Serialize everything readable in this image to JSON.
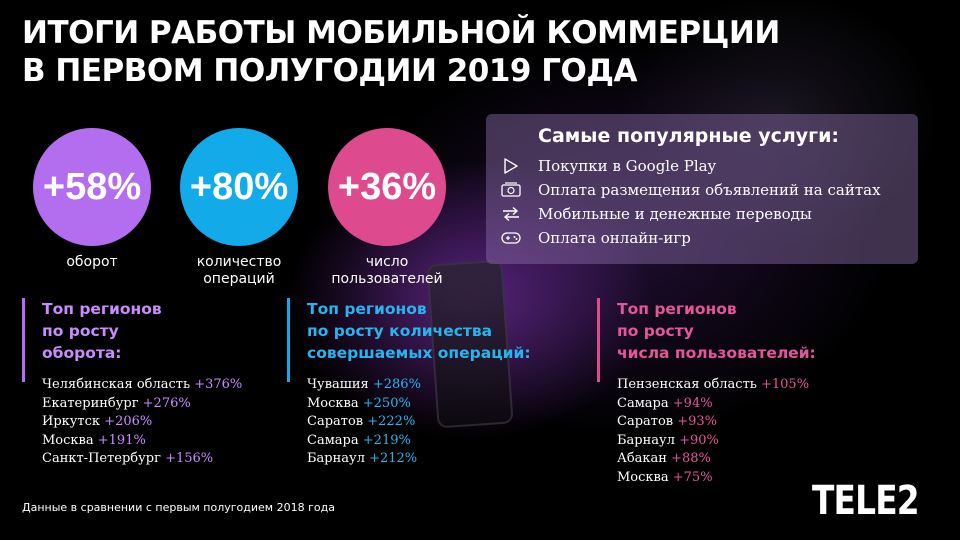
{
  "title": {
    "line1": "ИТОГИ РАБОТЫ МОБИЛЬНОЙ КОММЕРЦИИ",
    "line2": "В ПЕРВОМ ПОЛУГОДИИ 2019 ГОДА"
  },
  "stats": [
    {
      "value": "+58%",
      "label": "оборот",
      "color": "#b36ef0"
    },
    {
      "value": "+80%",
      "label_line1": "количество",
      "label_line2": "операций",
      "color": "#12aae8"
    },
    {
      "value": "+36%",
      "label_line1": "число",
      "label_line2": "пользователей",
      "color": "#de4a8e"
    }
  ],
  "services": {
    "heading": "Самые популярные услуги:",
    "items": [
      {
        "icon": "play-store-icon",
        "text": "Покупки в Google Play"
      },
      {
        "icon": "ad-placement-icon",
        "text": "Оплата размещения объявлений на сайтах"
      },
      {
        "icon": "transfer-arrows-icon",
        "text": "Мобильные и денежные переводы"
      },
      {
        "icon": "gamepad-icon",
        "text": "Оплата онлайн-игр"
      }
    ]
  },
  "regions": [
    {
      "head": [
        "Топ регионов",
        "по росту",
        "оборота:"
      ],
      "color": "#b36ef0",
      "items": [
        {
          "name": "Челябинская область",
          "value": "+376%"
        },
        {
          "name": "Екатеринбург",
          "value": "+276%"
        },
        {
          "name": "Иркутск",
          "value": "+206%"
        },
        {
          "name": "Москва",
          "value": "+191%"
        },
        {
          "name": "Санкт-Петербург",
          "value": "+156%"
        }
      ]
    },
    {
      "head": [
        "Топ регионов",
        "по росту количества",
        "совершаемых операций:"
      ],
      "color": "#12aae8",
      "items": [
        {
          "name": "Чувашия",
          "value": "+286%"
        },
        {
          "name": "Москва",
          "value": "+250%"
        },
        {
          "name": "Саратов",
          "value": "+222%"
        },
        {
          "name": "Самара",
          "value": "+219%"
        },
        {
          "name": "Барнаул",
          "value": "+212%"
        }
      ]
    },
    {
      "head": [
        "Топ регионов",
        "по росту",
        "числа пользователей:"
      ],
      "color": "#de4a8e",
      "items": [
        {
          "name": "Пензенская область",
          "value": "+105%"
        },
        {
          "name": "Самара",
          "value": "+94%"
        },
        {
          "name": "Саратов",
          "value": "+93%"
        },
        {
          "name": "Барнаул",
          "value": "+90%"
        },
        {
          "name": "Абакан",
          "value": "+88%"
        },
        {
          "name": "Москва",
          "value": "+75%"
        }
      ]
    }
  ],
  "footnote": "Данные в сравнении с первым полугодием 2018 года",
  "logo": "TELE2"
}
